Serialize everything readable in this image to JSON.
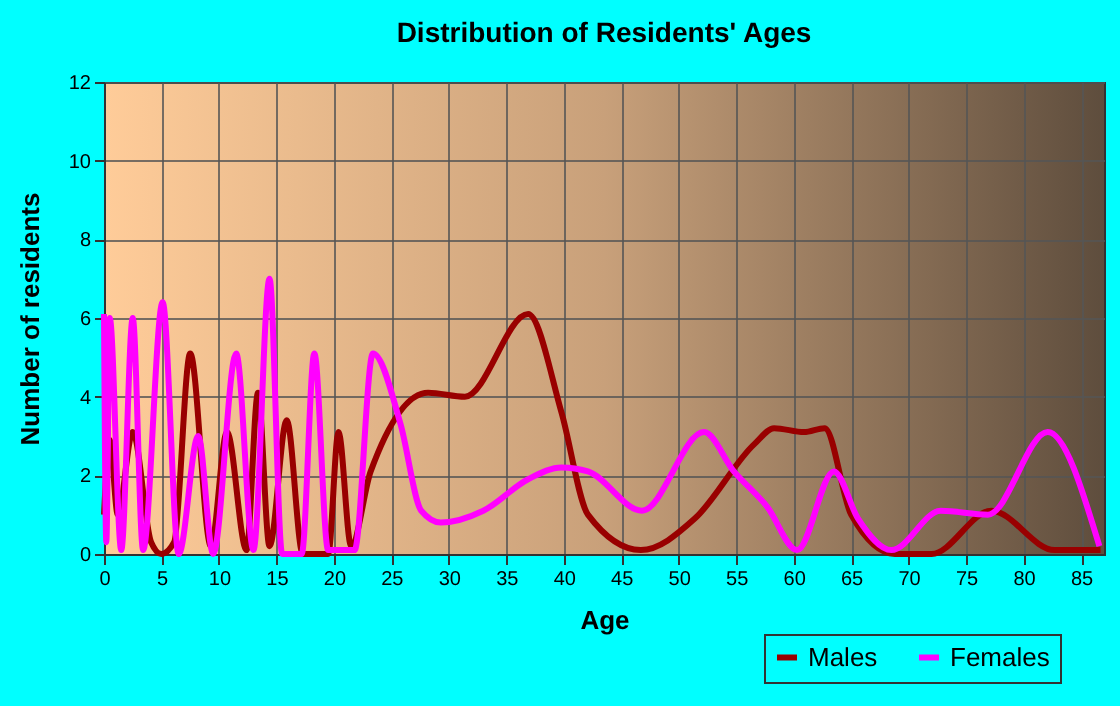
{
  "chart_data": {
    "type": "line",
    "title": "Distribution of Residents' Ages",
    "xlabel": "Age",
    "ylabel": "Number of residents",
    "xlim": [
      0,
      87
    ],
    "xticks": [
      0,
      5,
      10,
      15,
      20,
      25,
      30,
      35,
      40,
      45,
      50,
      55,
      60,
      65,
      70,
      75,
      80,
      85
    ],
    "ylim": [
      0,
      12
    ],
    "yticks": [
      0,
      2,
      4,
      6,
      8,
      10,
      12
    ],
    "grid": true,
    "legend": "bottom right",
    "marker": "none",
    "line_style": "solid",
    "series": [
      {
        "name": "Males",
        "color": "#990000",
        "x": [
          0,
          0.5,
          1.2,
          2.5,
          4.1,
          5,
          6.1,
          7.5,
          9.3,
          10.7,
          12.4,
          13.4,
          14.4,
          15.9,
          17.3,
          19.5,
          20.4,
          21.5,
          23.2,
          28.2,
          31.4,
          36.9,
          39.8,
          42.1,
          46.7,
          51.4,
          56.6,
          58.3,
          60.9,
          62.7,
          65,
          68.8,
          72,
          77.2,
          82.7,
          86.7
        ],
        "values": [
          1,
          2.9,
          1,
          3.1,
          0.3,
          0,
          0.3,
          5.1,
          0.2,
          3.1,
          0.1,
          4.1,
          0.2,
          3.4,
          0,
          0,
          3.1,
          0.2,
          2.1,
          4.1,
          4,
          6.1,
          3.6,
          1,
          0.1,
          0.9,
          2.8,
          3.2,
          3.1,
          3.2,
          1,
          0,
          0,
          1.1,
          0.1,
          0.1
        ]
      },
      {
        "name": "Females",
        "color": "#ff00ff",
        "x": [
          0,
          0.2,
          0.5,
          1.5,
          2.5,
          3.4,
          5.1,
          6.5,
          8.2,
          9.5,
          11.5,
          13,
          14.4,
          15.5,
          17.2,
          18.3,
          19.5,
          20.6,
          21.8,
          23.4,
          25.8,
          27.6,
          29.3,
          33,
          36.9,
          39.8,
          42.1,
          46.8,
          52.2,
          54.8,
          57.7,
          60.3,
          63.5,
          65.6,
          68.5,
          72.8,
          76.9,
          82.1,
          86.6
        ],
        "values": [
          6.1,
          0.3,
          6,
          0.1,
          6,
          0.1,
          6.4,
          0,
          3,
          0,
          5.1,
          0.1,
          7,
          0,
          0,
          5.1,
          0.1,
          0.1,
          0.1,
          5.1,
          3.3,
          1.1,
          0.8,
          1.1,
          1.9,
          2.2,
          2.1,
          1.1,
          3.1,
          2.1,
          1.2,
          0.1,
          2.1,
          0.9,
          0.1,
          1.1,
          1,
          3.1,
          0.2
        ]
      }
    ]
  }
}
